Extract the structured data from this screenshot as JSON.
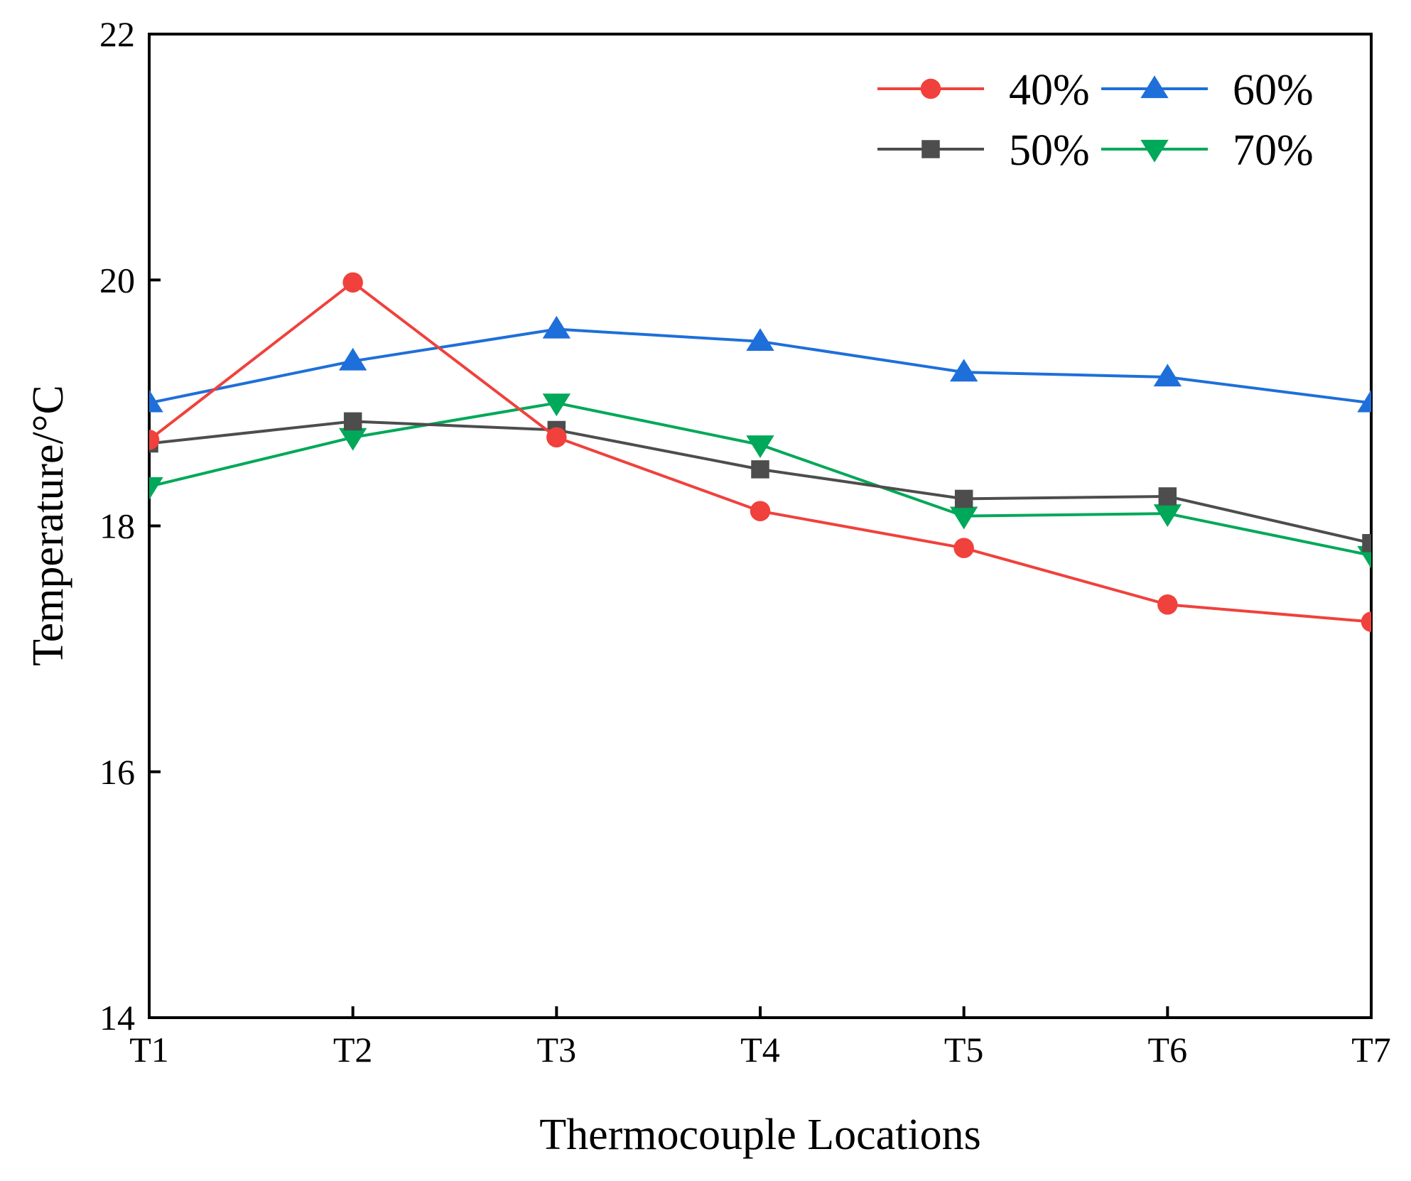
{
  "chart_data": {
    "type": "line",
    "title": "",
    "xlabel": "Thermocouple Locations",
    "ylabel": "Temperature/°C",
    "categories": [
      "T1",
      "T2",
      "T3",
      "T4",
      "T5",
      "T6",
      "T7"
    ],
    "ylim": [
      14,
      22
    ],
    "yticks": [
      14,
      16,
      18,
      20,
      22
    ],
    "ytick_labels": [
      "14",
      "16",
      "18",
      "20",
      "22"
    ],
    "grid": false,
    "legend_position": "top-right",
    "series": [
      {
        "name": "40%",
        "color": "#f0413c",
        "marker": "circle",
        "values": [
          18.7,
          19.98,
          18.72,
          18.12,
          17.82,
          17.36,
          17.22
        ]
      },
      {
        "name": "50%",
        "color": "#4d4d4d",
        "marker": "square",
        "values": [
          18.67,
          18.85,
          18.78,
          18.46,
          18.22,
          18.24,
          17.86
        ]
      },
      {
        "name": "60%",
        "color": "#1e6fd9",
        "marker": "triangle-up",
        "values": [
          19.0,
          19.34,
          19.6,
          19.5,
          19.25,
          19.21,
          19.0
        ]
      },
      {
        "name": "70%",
        "color": "#00a859",
        "marker": "triangle-down",
        "values": [
          18.32,
          18.72,
          19.0,
          18.66,
          18.08,
          18.1,
          17.76
        ]
      }
    ]
  }
}
